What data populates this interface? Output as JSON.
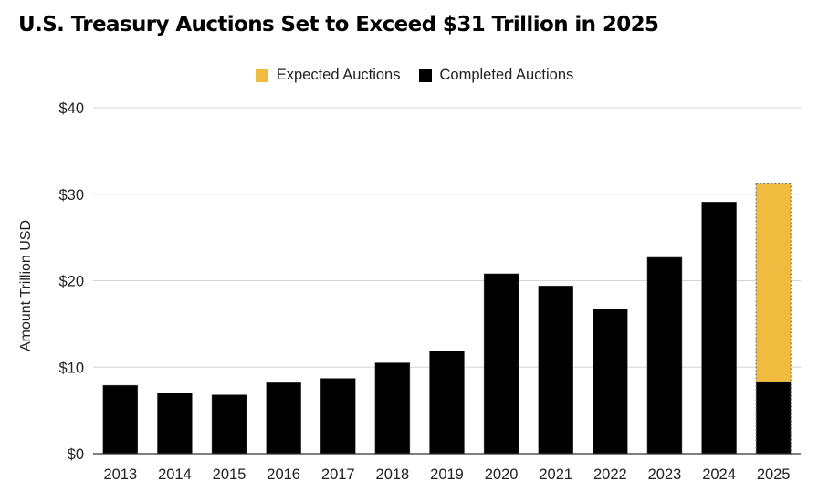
{
  "chart_data": {
    "type": "bar",
    "stacked": true,
    "title": "U.S. Treasury Auctions Set to Exceed $31 Trillion in 2025",
    "xlabel": "",
    "ylabel": "Amount Trillion USD",
    "ylim": [
      0,
      40
    ],
    "yticks": [
      0,
      10,
      20,
      30,
      40
    ],
    "ytick_labels": [
      "$0",
      "$10",
      "$20",
      "$30",
      "$40"
    ],
    "grid": true,
    "legend_position": "top-center",
    "categories": [
      "2013",
      "2014",
      "2015",
      "2016",
      "2017",
      "2018",
      "2019",
      "2020",
      "2021",
      "2022",
      "2023",
      "2024",
      "2025"
    ],
    "series": [
      {
        "name": "Completed Auctions",
        "color": "#000000",
        "values": [
          7.9,
          7.0,
          6.8,
          8.2,
          8.7,
          10.5,
          11.9,
          20.8,
          19.4,
          16.7,
          22.7,
          29.1,
          8.3
        ]
      },
      {
        "name": "Expected Auctions",
        "color": "#F0BC3F",
        "values": [
          0,
          0,
          0,
          0,
          0,
          0,
          0,
          0,
          0,
          0,
          0,
          0,
          22.9
        ]
      }
    ]
  },
  "legend": [
    {
      "label": "Expected Auctions",
      "color": "#F0BC3F"
    },
    {
      "label": "Completed Auctions",
      "color": "#000000"
    }
  ]
}
